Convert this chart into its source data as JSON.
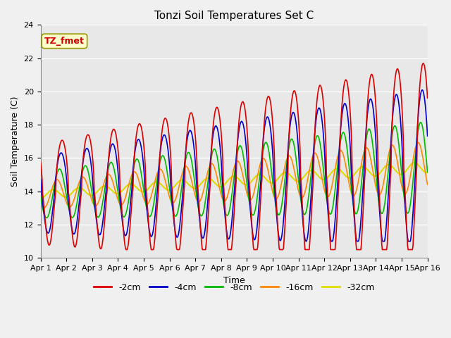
{
  "title": "Tonzi Soil Temperatures Set C",
  "xlabel": "Time",
  "ylabel": "Soil Temperature (C)",
  "ylim": [
    10,
    24
  ],
  "yticks": [
    10,
    12,
    14,
    16,
    18,
    20,
    22,
    24
  ],
  "n_days": 15,
  "pts_per_day": 48,
  "xtick_labels": [
    "Apr 1",
    "Apr 2",
    "Apr 3",
    "Apr 4",
    "Apr 5",
    "Apr 6",
    "Apr 7",
    "Apr 8",
    "Apr 9",
    "Apr 10",
    "Apr 11",
    "Apr 12",
    "Apr 13",
    "Apr 14",
    "Apr 15",
    "Apr 16"
  ],
  "annotation_text": "TZ_fmet",
  "annotation_color": "#cc0000",
  "annotation_bg": "#ffffcc",
  "series": [
    {
      "label": "-2cm",
      "color": "#dd0000",
      "linewidth": 1.2
    },
    {
      "label": "-4cm",
      "color": "#0000cc",
      "linewidth": 1.2
    },
    {
      "label": "-8cm",
      "color": "#00bb00",
      "linewidth": 1.2
    },
    {
      "label": "-16cm",
      "color": "#ff8800",
      "linewidth": 1.2
    },
    {
      "label": "-32cm",
      "color": "#dddd00",
      "linewidth": 1.5
    }
  ],
  "background_color": "#e8e8e8",
  "grid_color": "#ffffff",
  "title_fontsize": 11,
  "axis_fontsize": 9,
  "tick_fontsize": 8,
  "legend_fontsize": 9
}
